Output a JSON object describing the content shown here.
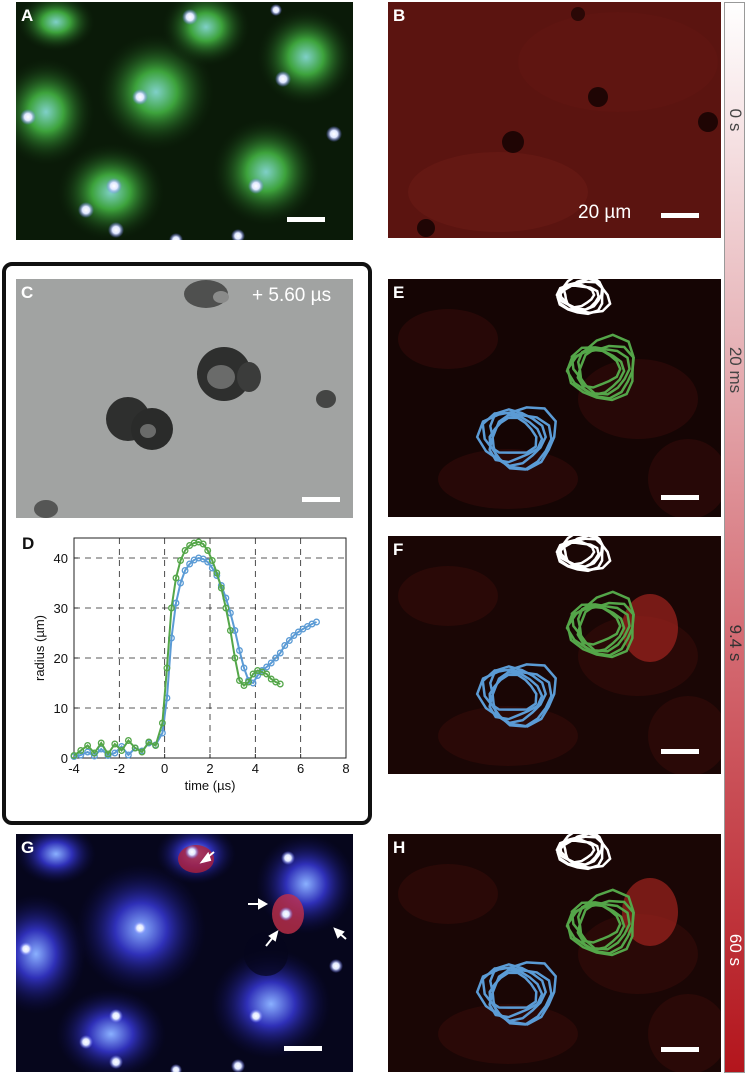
{
  "panels": {
    "A": {
      "label": "A"
    },
    "B": {
      "label": "B",
      "scale_text": "20 µm"
    },
    "C": {
      "label": "C",
      "time_text": "+ 5.60 µs"
    },
    "D": {
      "label": "D"
    },
    "E": {
      "label": "E"
    },
    "F": {
      "label": "F"
    },
    "G": {
      "label": "G"
    },
    "H": {
      "label": "H"
    }
  },
  "colorbar": {
    "labels": [
      "0 s",
      "20 ms",
      "9.4 s",
      "60 s"
    ],
    "colors": {
      "top": "#ffffff",
      "bottom": "#b3151c"
    }
  },
  "colors": {
    "blue": "#5b9bd5",
    "green": "#54a649",
    "white": "#ffffff"
  },
  "chart_data": {
    "type": "line",
    "xlabel": "time (µs)",
    "ylabel": "radius (µm)",
    "xlim": [
      -4,
      8
    ],
    "ylim": [
      0,
      44
    ],
    "xticks": [
      -4,
      -2,
      0,
      2,
      4,
      6,
      8
    ],
    "yticks": [
      0,
      10,
      20,
      30,
      40
    ],
    "grid": true,
    "series": [
      {
        "color": "#5b9bd5",
        "x": [
          -4.0,
          -3.7,
          -3.4,
          -3.1,
          -2.8,
          -2.5,
          -2.2,
          -1.9,
          -1.6,
          -1.3,
          -1.0,
          -0.7,
          -0.4,
          -0.1,
          0.1,
          0.3,
          0.5,
          0.7,
          0.9,
          1.1,
          1.3,
          1.5,
          1.7,
          1.9,
          2.1,
          2.3,
          2.5,
          2.7,
          2.9,
          3.1,
          3.3,
          3.5,
          3.7,
          3.9,
          4.1,
          4.3,
          4.5,
          4.7,
          4.9,
          5.1,
          5.3,
          5.5,
          5.7,
          5.9,
          6.1,
          6.3,
          6.5,
          6.7
        ],
        "y": [
          0.3,
          0.6,
          1.2,
          0.4,
          1.8,
          0.5,
          1.0,
          2.3,
          0.6,
          2.0,
          1.4,
          3.0,
          2.6,
          5.0,
          12.0,
          24.0,
          31.0,
          35.0,
          37.5,
          38.8,
          39.6,
          40.0,
          39.8,
          39.2,
          38.0,
          36.5,
          34.5,
          32.0,
          29.0,
          25.5,
          21.5,
          18.0,
          15.5,
          15.0,
          16.5,
          17.5,
          18.2,
          19.0,
          20.0,
          21.0,
          22.5,
          23.5,
          24.5,
          25.2,
          25.8,
          26.3,
          26.8,
          27.2
        ]
      },
      {
        "color": "#54a649",
        "x": [
          -4.0,
          -3.7,
          -3.4,
          -3.1,
          -2.8,
          -2.5,
          -2.2,
          -1.9,
          -1.6,
          -1.3,
          -1.0,
          -0.7,
          -0.4,
          -0.1,
          0.1,
          0.3,
          0.5,
          0.7,
          0.9,
          1.1,
          1.3,
          1.5,
          1.7,
          1.9,
          2.1,
          2.3,
          2.5,
          2.7,
          2.9,
          3.1,
          3.3,
          3.5,
          3.7,
          3.9,
          4.1,
          4.3,
          4.5,
          4.7,
          4.9,
          5.1
        ],
        "y": [
          0.5,
          1.5,
          2.5,
          1.0,
          3.0,
          0.8,
          2.8,
          1.5,
          3.5,
          2.0,
          1.2,
          3.2,
          2.5,
          7.0,
          18.0,
          30.0,
          36.0,
          39.5,
          41.5,
          42.5,
          43.0,
          43.2,
          42.8,
          41.5,
          39.5,
          37.0,
          34.0,
          30.0,
          25.5,
          20.0,
          15.5,
          14.5,
          15.2,
          16.8,
          17.5,
          17.2,
          16.8,
          15.8,
          15.2,
          14.8
        ]
      }
    ]
  }
}
